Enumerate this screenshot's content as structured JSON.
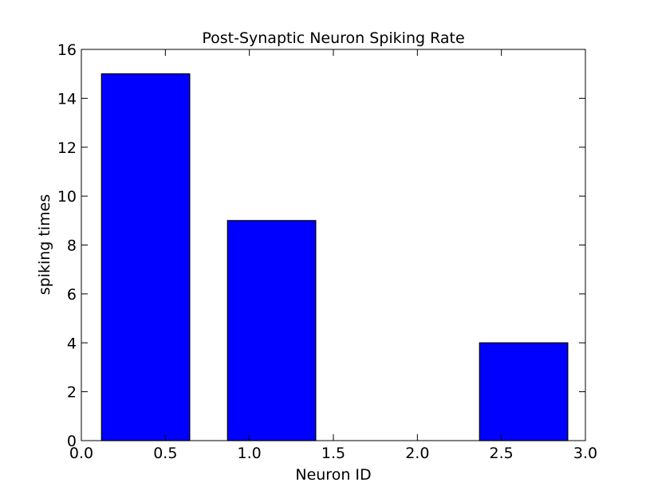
{
  "chart_data": {
    "type": "bar",
    "title": "Post-Synaptic Neuron Spiking Rate",
    "xlabel": "Neuron ID",
    "ylabel": "spiking times",
    "xlim": [
      0.0,
      3.0
    ],
    "ylim": [
      0,
      16
    ],
    "x_ticks": [
      "0.0",
      "0.5",
      "1.0",
      "1.5",
      "2.0",
      "2.5",
      "3.0"
    ],
    "x_tick_values": [
      0.0,
      0.5,
      1.0,
      1.5,
      2.0,
      2.5,
      3.0
    ],
    "y_ticks": [
      "0",
      "2",
      "4",
      "6",
      "8",
      "10",
      "12",
      "14",
      "16"
    ],
    "y_tick_values": [
      0,
      2,
      4,
      6,
      8,
      10,
      12,
      14,
      16
    ],
    "bars": [
      {
        "x_start": 0.12,
        "x_end": 0.645,
        "value": 15
      },
      {
        "x_start": 0.87,
        "x_end": 1.395,
        "value": 9
      },
      {
        "x_start": 1.62,
        "x_end": 2.145,
        "value": 0
      },
      {
        "x_start": 2.37,
        "x_end": 2.895,
        "value": 4
      }
    ],
    "bar_color": "#0000ff",
    "bar_edge_color": "#000000",
    "grid": false,
    "legend": "none"
  }
}
